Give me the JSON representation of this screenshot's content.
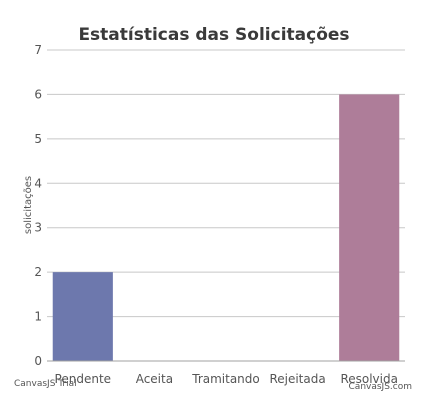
{
  "chart_data": {
    "type": "bar",
    "title": "Estatísticas das Solicitações",
    "xlabel": "",
    "ylabel": "solicitações",
    "categories": [
      "Pendente",
      "Aceita",
      "Tramitando",
      "Rejeitada",
      "Resolvida"
    ],
    "values": [
      2,
      0,
      0,
      0,
      6
    ],
    "colors": [
      "#6d78ad",
      "#51cda0",
      "#df7970",
      "#4c9ca0",
      "#ae7d99"
    ],
    "ylim": [
      0,
      7
    ],
    "yticks": [
      0,
      1,
      2,
      3,
      4,
      5,
      6,
      7
    ],
    "grid": true,
    "legend": "none"
  },
  "credits": {
    "left": "CanvasJS Trial",
    "right": "CanvasJS.com"
  }
}
